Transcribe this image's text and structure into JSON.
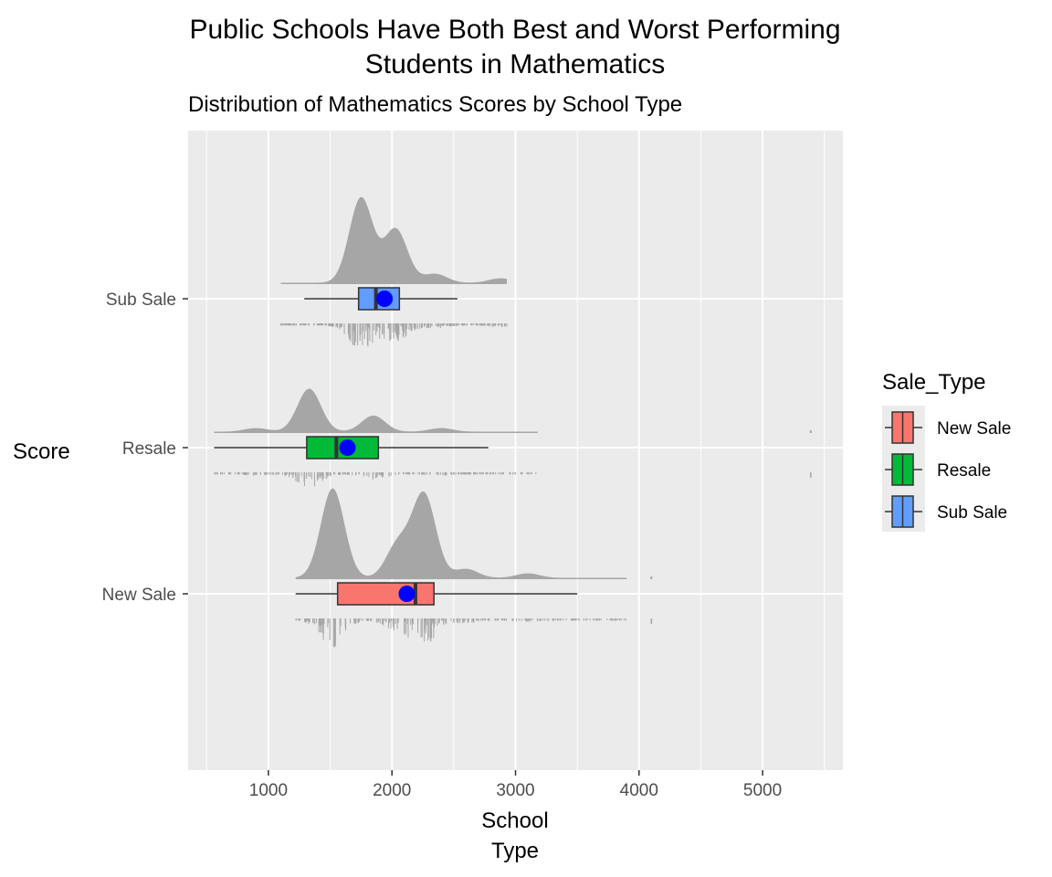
{
  "chart_data": {
    "type": "raincloud",
    "title": [
      "Public Schools Have Both Best and Worst Performing",
      "Students in Mathematics"
    ],
    "subtitle": "Distribution of Mathematics Scores by School Type",
    "xlabel": [
      "School",
      "Type"
    ],
    "ylabel": "Score",
    "xlim": [
      350,
      5650
    ],
    "x_ticks": [
      1000,
      2000,
      3000,
      4000,
      5000
    ],
    "grid": true,
    "legend": {
      "title": "Sale_Type",
      "position": "right",
      "entries": [
        "New Sale",
        "Resale",
        "Sub Sale"
      ]
    },
    "series": [
      {
        "name": "New Sale",
        "color": "#F8766D",
        "box": {
          "min": 1220,
          "q1": 1560,
          "median": 2190,
          "q3": 2340,
          "max": 3500
        },
        "mean": 2120,
        "range": [
          1220,
          4100
        ],
        "density_peaks": [
          [
            1520,
            1.0
          ],
          [
            2260,
            0.93
          ],
          [
            2050,
            0.38
          ],
          [
            2600,
            0.1
          ],
          [
            3100,
            0.05
          ]
        ]
      },
      {
        "name": "Resale",
        "color": "#00BA38",
        "box": {
          "min": 560,
          "q1": 1310,
          "median": 1550,
          "q3": 1890,
          "max": 2780
        },
        "mean": 1640,
        "range": [
          560,
          5390
        ],
        "density_peaks": [
          [
            1330,
            0.48
          ],
          [
            1850,
            0.18
          ],
          [
            900,
            0.04
          ],
          [
            2400,
            0.04
          ]
        ]
      },
      {
        "name": "Sub Sale",
        "color": "#619CFF",
        "box": {
          "min": 1290,
          "q1": 1730,
          "median": 1870,
          "q3": 2060,
          "max": 2530
        },
        "mean": 1940,
        "range": [
          1100,
          2960
        ],
        "density_peaks": [
          [
            1750,
            0.95
          ],
          [
            2030,
            0.6
          ],
          [
            2350,
            0.1
          ],
          [
            2880,
            0.05
          ]
        ]
      }
    ]
  }
}
